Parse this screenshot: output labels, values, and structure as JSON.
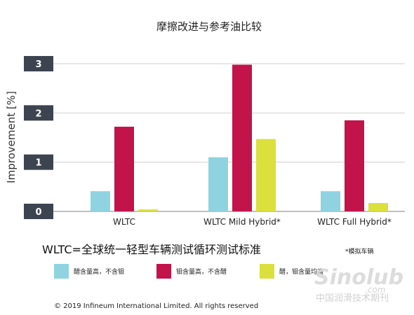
{
  "chart_data": {
    "type": "bar",
    "title": "摩擦改进与参考油比较",
    "ylabel": "Improvement [%]",
    "ylim": [
      0,
      3
    ],
    "yticks": [
      "0",
      "1",
      "2",
      "3"
    ],
    "grid": true,
    "categories": [
      "WLTC",
      "WLTC Mild Hybrid*",
      "WLTC Full Hybrid*"
    ],
    "series": [
      {
        "name": "醋含量高，不含钼",
        "color": "#8fd3e1",
        "values": [
          0.41,
          1.1,
          0.41
        ]
      },
      {
        "name": "钼含量高，不含醋",
        "color": "#c2134b",
        "values": [
          1.72,
          2.98,
          1.85
        ]
      },
      {
        "name": "醋，钼含量均高",
        "color": "#dbe03c",
        "values": [
          0.04,
          1.47,
          0.17
        ]
      }
    ],
    "legend_position": "bottom"
  },
  "notes": {
    "wltc_definition": "WLTC=全球统一轻型车辆测试循环测试标准",
    "simulated": "*模拟车辆",
    "copyright": "© 2019 Infineum International Limited. All rights reserved"
  },
  "watermark": {
    "logo": "Sinolub",
    "domain": ".com",
    "text": "中国润滑技术期刊"
  }
}
